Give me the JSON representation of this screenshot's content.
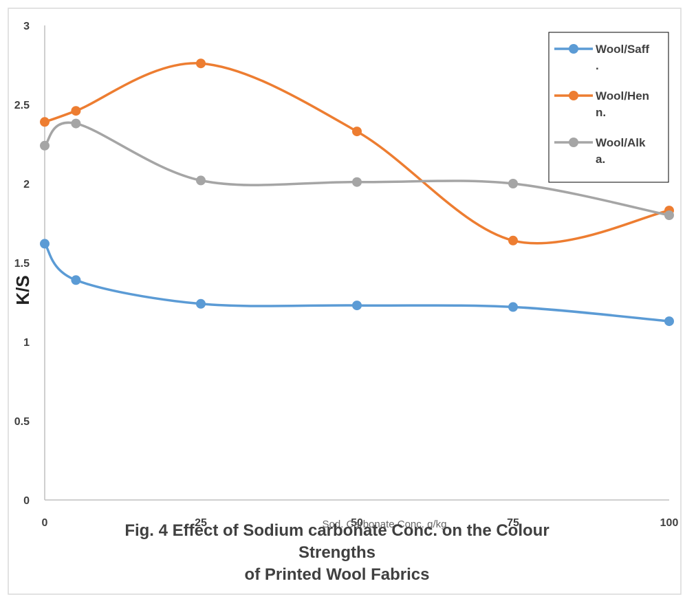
{
  "chart_data": {
    "type": "line",
    "smooth": true,
    "title": "",
    "xlabel": "Sod. Carbonate Conc. g/kg",
    "ylabel": "K/S",
    "x": [
      0,
      5,
      25,
      50,
      75,
      100
    ],
    "xticks": [
      "0",
      "25",
      "50",
      "75",
      "100"
    ],
    "xlim": [
      0,
      100
    ],
    "ylim": [
      0,
      3
    ],
    "yticks": [
      "0",
      "0.5",
      "1",
      "1.5",
      "2",
      "2.5",
      "3"
    ],
    "grid": false,
    "legend_position": "top-right",
    "series": [
      {
        "name": "Wool/Saff.",
        "legend_lines": [
          "Wool/Saff",
          "."
        ],
        "color": "#5B9BD5",
        "values": [
          1.62,
          1.39,
          1.24,
          1.23,
          1.22,
          1.13
        ]
      },
      {
        "name": "Wool/Henn.",
        "legend_lines": [
          "Wool/Hen",
          "n."
        ],
        "color": "#ED7D31",
        "values": [
          2.39,
          2.46,
          2.76,
          2.33,
          1.64,
          1.83
        ]
      },
      {
        "name": "Wool/Alka.",
        "legend_lines": [
          "Wool/Alk",
          "a."
        ],
        "color": "#A5A5A5",
        "values": [
          2.24,
          2.38,
          2.02,
          2.01,
          2.0,
          1.8
        ]
      }
    ]
  },
  "caption": {
    "line1": "Fig. 4 Effect of  Sodium carbonate Conc. on the Colour",
    "line2": "Strengths",
    "line3": "of Printed Wool Fabrics"
  }
}
